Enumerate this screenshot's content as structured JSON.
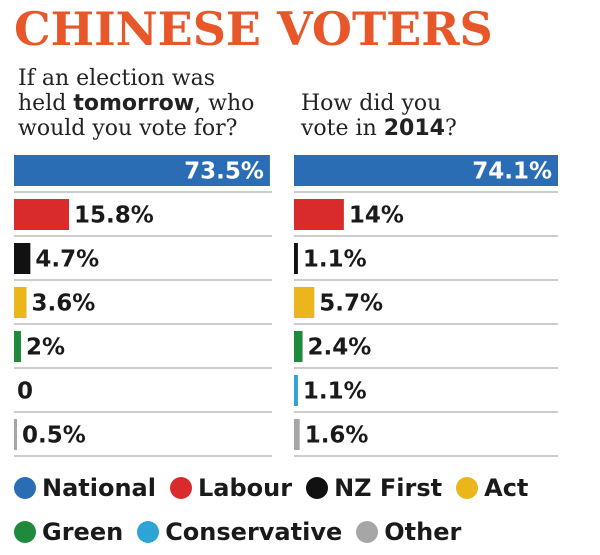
{
  "title": "CHINESE VOTERS",
  "questions": {
    "left": {
      "line1": "If an election was",
      "line2_pre": "held ",
      "line2_bold": "tomorrow",
      "line2_post": ", who",
      "line3": "would you vote for?"
    },
    "right": {
      "line1": "How did you",
      "line2_pre": "vote in ",
      "line2_bold": "2014",
      "line2_post": "?"
    }
  },
  "colors": {
    "National": "#2a6db5",
    "Labour": "#d92b2b",
    "NZ First": "#111111",
    "Act": "#eab61b",
    "Green": "#1f8a3b",
    "Conservative": "#2ea3d6",
    "Other": "#a6a6a6"
  },
  "chart_data": [
    {
      "type": "bar",
      "title": "If an election was held tomorrow, who would you vote for?",
      "categories": [
        "National",
        "Labour",
        "NZ First",
        "Act",
        "Green",
        "Conservative",
        "Other"
      ],
      "values": [
        73.5,
        15.8,
        4.7,
        3.6,
        2,
        0,
        0.5
      ],
      "labels": [
        "73.5%",
        "15.8%",
        "4.7%",
        "3.6%",
        "2%",
        "0",
        "0.5%"
      ]
    },
    {
      "type": "bar",
      "title": "How did you vote in 2014?",
      "categories": [
        "National",
        "Labour",
        "NZ First",
        "Act",
        "Green",
        "Conservative",
        "Other"
      ],
      "values": [
        74.1,
        14,
        1.1,
        5.7,
        2.4,
        1.1,
        1.6
      ],
      "labels": [
        "74.1%",
        "14%",
        "1.1%",
        "5.7%",
        "2.4%",
        "1.1%",
        "1.6%"
      ]
    }
  ],
  "legend": [
    "National",
    "Labour",
    "NZ First",
    "Act",
    "Green",
    "Conservative",
    "Other"
  ]
}
